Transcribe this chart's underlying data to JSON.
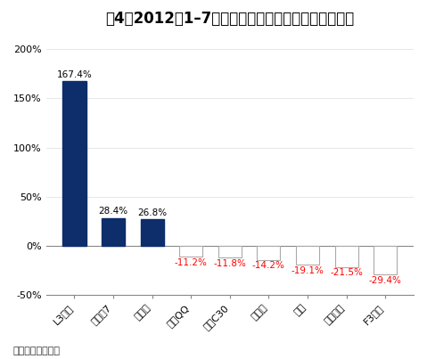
{
  "title_part1": "图4：",
  "title_part2": "2012年1–7月自主品牌主要的轿车销量变化情况",
  "categories": [
    "L3三厢",
    "帝豪泬7",
    "北斗星",
    "奇瑞QQ",
    "长城C30",
    "相关米",
    "夏利",
    "奔奔迷你",
    "F3三厢"
  ],
  "values": [
    167.4,
    28.4,
    26.8,
    -11.2,
    -11.8,
    -14.2,
    -19.1,
    -21.5,
    -29.4
  ],
  "bar_color_positive": "#0d2d6b",
  "bar_color_negative": "#ffffff",
  "bar_edge_color_negative": "#aaaaaa",
  "label_color_positive": "#000000",
  "label_color_negative": "#ff0000",
  "ylim": [
    -50,
    200
  ],
  "yticks": [
    -50,
    0,
    50,
    100,
    150,
    200
  ],
  "ytick_labels": [
    "-50%",
    "0%",
    "50%",
    "100%",
    "150%",
    "200%"
  ],
  "source_text": "来源：盖世汽车网",
  "background_color": "#ffffff",
  "grid_color": "#dddddd",
  "title_fontsize": 12,
  "label_fontsize": 7.5,
  "tick_fontsize": 8,
  "source_fontsize": 8
}
